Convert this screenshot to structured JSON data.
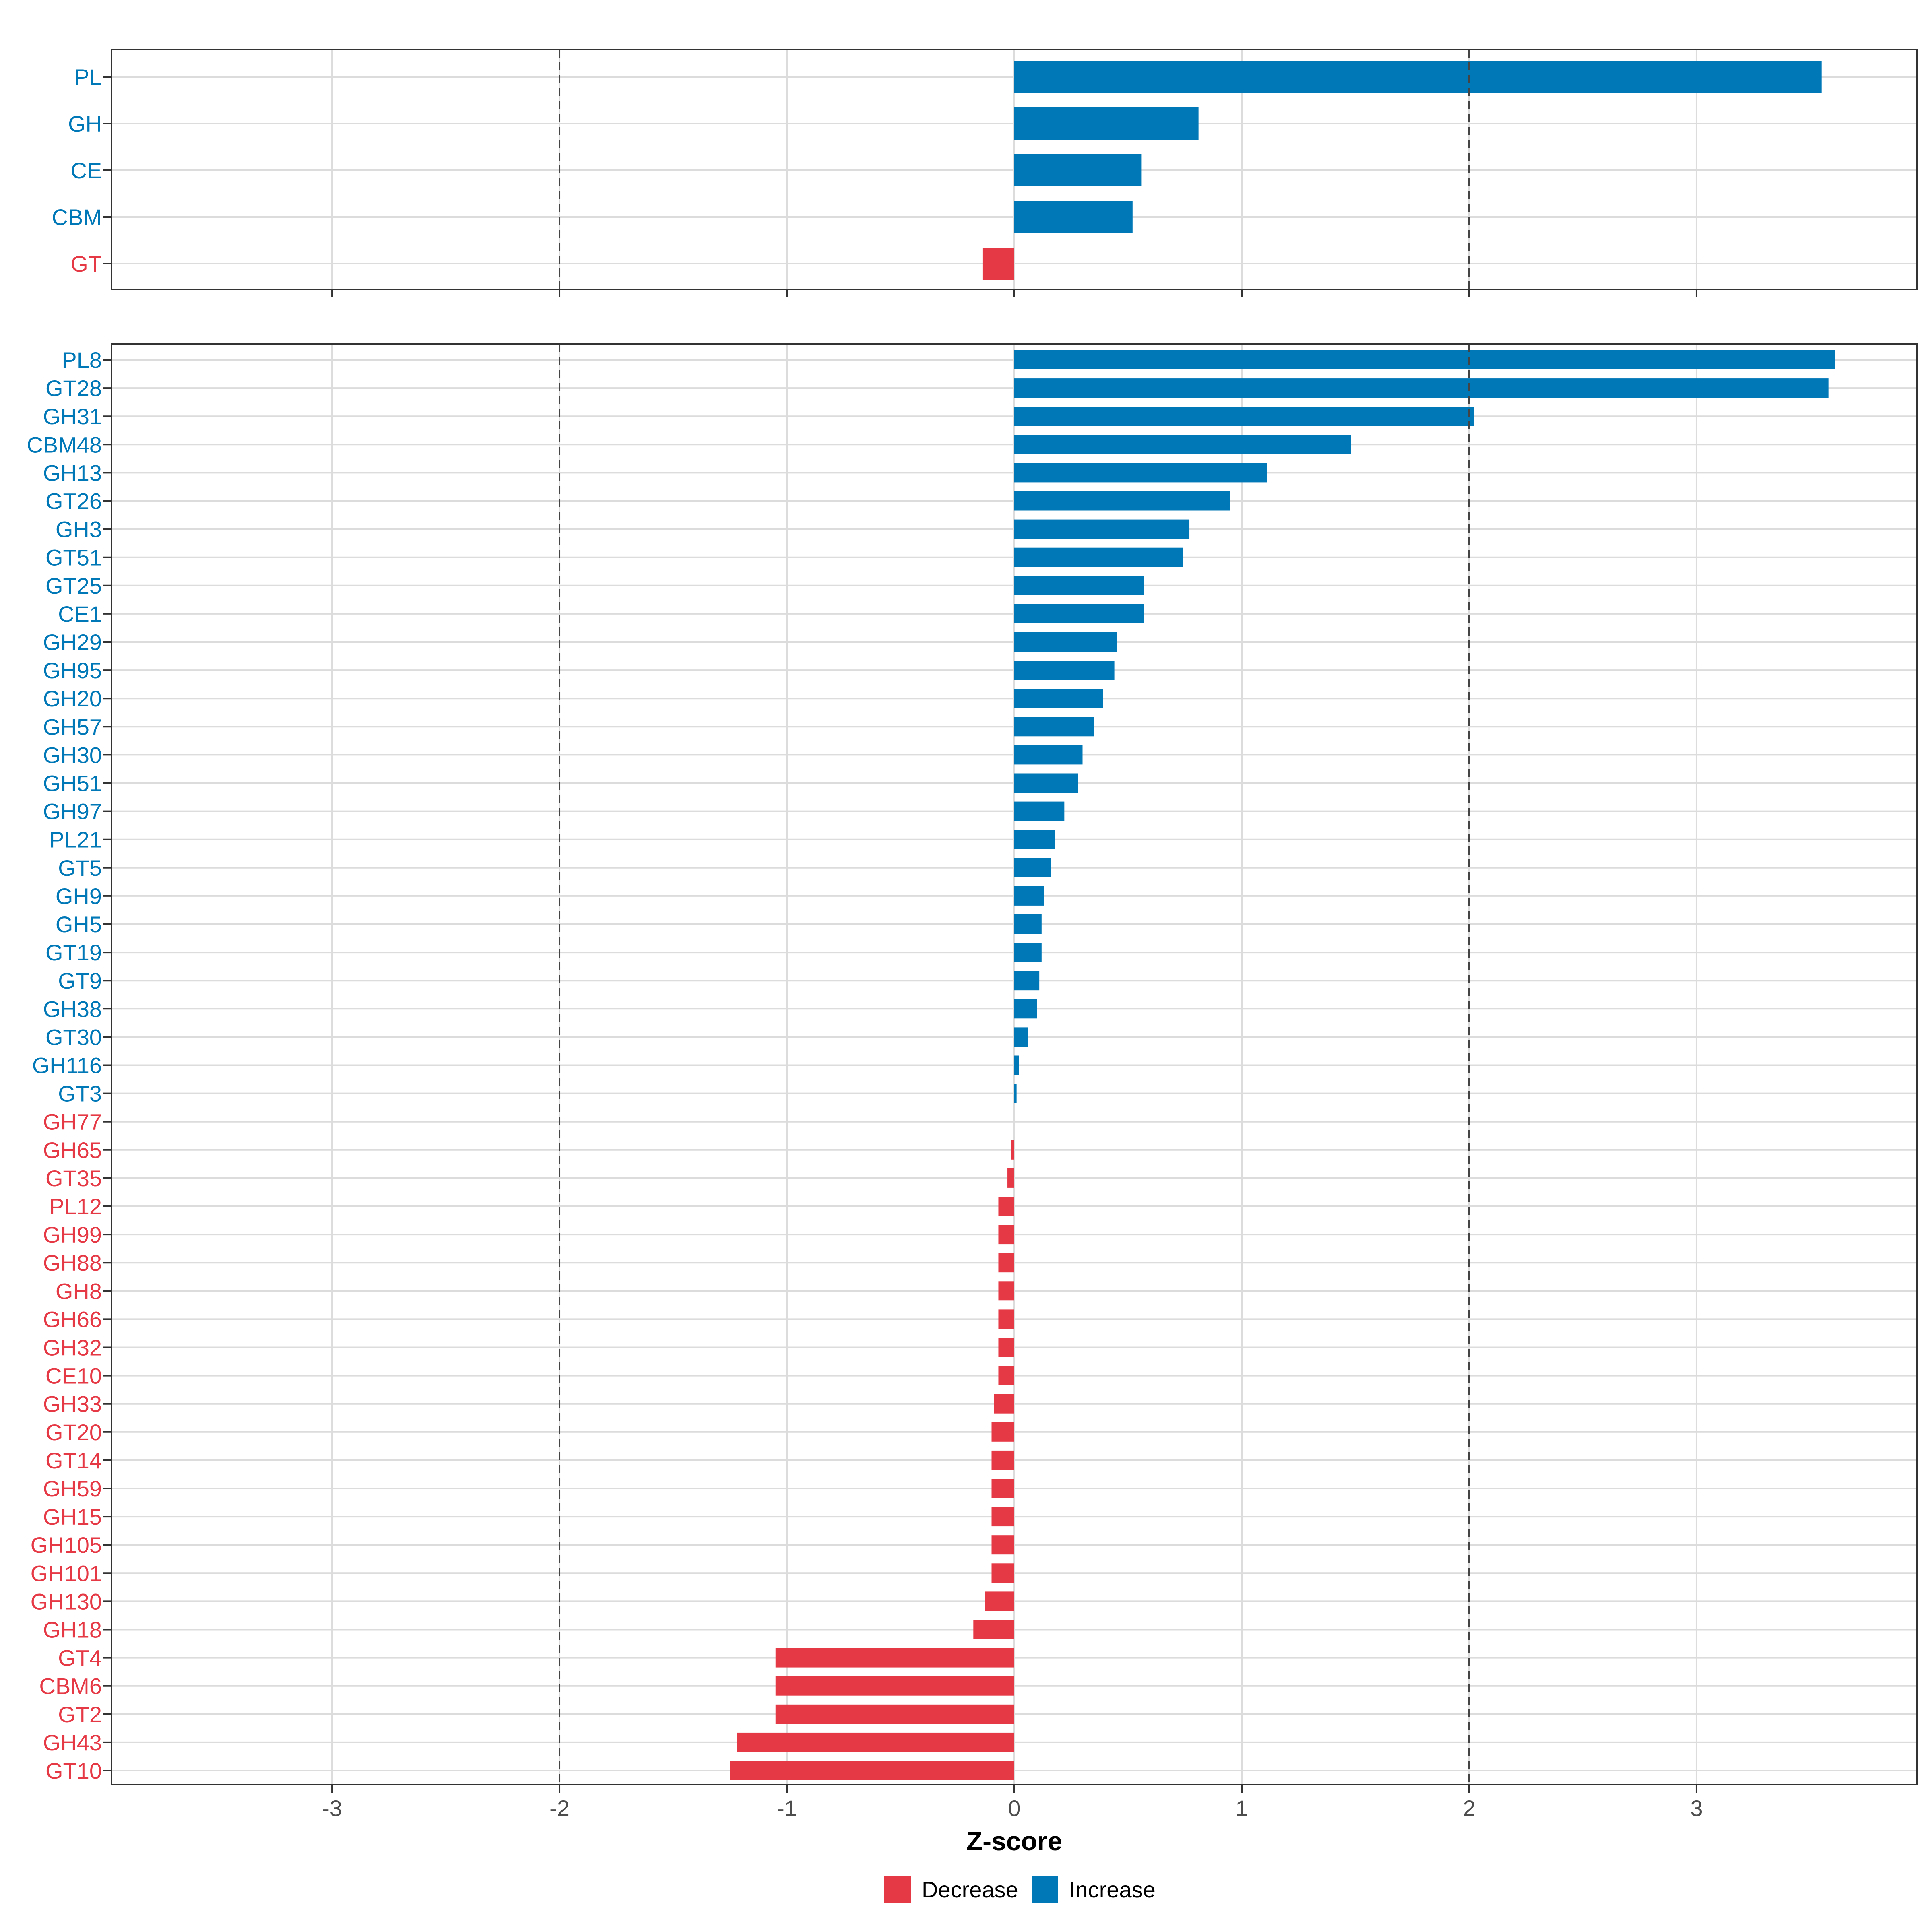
{
  "chart_data": [
    {
      "type": "bar",
      "orientation": "horizontal",
      "panel": "top",
      "categories": [
        "PL",
        "GH",
        "CE",
        "CBM",
        "GT"
      ],
      "values": [
        3.55,
        0.81,
        0.56,
        0.52,
        -0.14
      ],
      "xlim": [
        -3.97,
        3.97
      ],
      "reference_lines": [
        -2,
        2
      ],
      "grid": true
    },
    {
      "type": "bar",
      "orientation": "horizontal",
      "panel": "bottom",
      "categories": [
        "PL8",
        "GT28",
        "GH31",
        "CBM48",
        "GH13",
        "GT26",
        "GH3",
        "GT51",
        "GT25",
        "CE1",
        "GH29",
        "GH95",
        "GH20",
        "GH57",
        "GH30",
        "GH51",
        "GH97",
        "PL21",
        "GT5",
        "GH9",
        "GH5",
        "GT19",
        "GT9",
        "GH38",
        "GT30",
        "GH116",
        "GT3",
        "GH77",
        "GH65",
        "GT35",
        "PL12",
        "GH99",
        "GH88",
        "GH8",
        "GH66",
        "GH32",
        "CE10",
        "GH33",
        "GT20",
        "GT14",
        "GH59",
        "GH15",
        "GH105",
        "GH101",
        "GH130",
        "GH18",
        "GT4",
        "CBM6",
        "GT2",
        "GH43",
        "GT10"
      ],
      "values": [
        3.61,
        3.58,
        2.02,
        1.48,
        1.11,
        0.95,
        0.77,
        0.74,
        0.57,
        0.57,
        0.45,
        0.44,
        0.39,
        0.35,
        0.3,
        0.28,
        0.22,
        0.18,
        0.16,
        0.13,
        0.12,
        0.12,
        0.11,
        0.1,
        0.06,
        0.02,
        0.01,
        0.0,
        -0.015,
        -0.03,
        -0.07,
        -0.07,
        -0.07,
        -0.07,
        -0.07,
        -0.07,
        -0.07,
        -0.09,
        -0.1,
        -0.1,
        -0.1,
        -0.1,
        -0.1,
        -0.1,
        -0.13,
        -0.18,
        -1.05,
        -1.05,
        -1.05,
        -1.22,
        -1.25
      ],
      "xlabel": "Z-score",
      "xticks": [
        -3,
        -2,
        -1,
        0,
        1,
        2,
        3
      ],
      "xtick_labels": [
        "-3",
        "-2",
        "-1",
        "0",
        "1",
        "2",
        "3"
      ],
      "xlim": [
        -3.97,
        3.97
      ],
      "reference_lines": [
        -2,
        2
      ],
      "grid": true
    }
  ],
  "legend": {
    "position": "bottom",
    "items": [
      {
        "label": "Decrease",
        "color": "#e63946"
      },
      {
        "label": "Increase",
        "color": "#0077b6"
      }
    ]
  },
  "colors": {
    "increase": "#0077b6",
    "decrease": "#e63946",
    "grid": "#dcdcdc",
    "panel_border": "#333333",
    "reference_line": "#444444"
  }
}
